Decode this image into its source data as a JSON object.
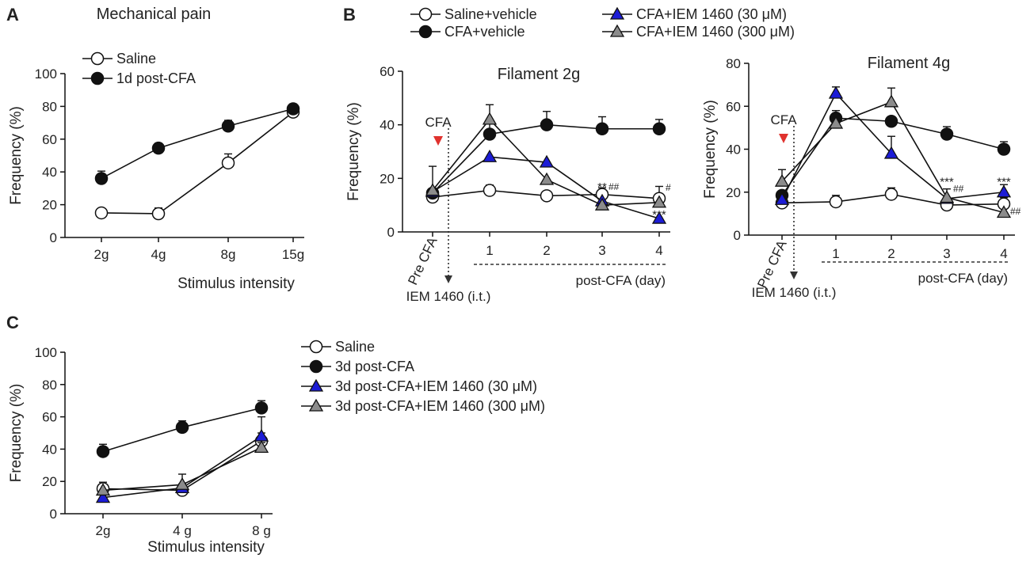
{
  "chart_data": [
    {
      "panel": "A",
      "type": "line",
      "title": "Mechanical pain",
      "xlabel": "Stimulus intensity",
      "ylabel": "Frequency (%)",
      "ylim": [
        0,
        100
      ],
      "yticks": [
        "0",
        "20",
        "40",
        "60",
        "80",
        "100"
      ],
      "categories": [
        "2g",
        "4g",
        "8g",
        "15g"
      ],
      "legend_position": "top-left",
      "series": [
        {
          "name": "Saline",
          "marker": "circle-open",
          "color": "#ffffff",
          "values": [
            15,
            14.5,
            45.5,
            76.5
          ],
          "errors": [
            0,
            3.5,
            5.5,
            3.5
          ]
        },
        {
          "name": "1d post-CFA",
          "marker": "circle-filled",
          "color": "#111111",
          "values": [
            36,
            54.5,
            68,
            78.5
          ],
          "errors": [
            4.5,
            3,
            3.5,
            3
          ]
        }
      ]
    },
    {
      "panel": "B",
      "type": "line",
      "title": "Filament 2g",
      "ylabel": "Frequency (%)",
      "ylim": [
        0,
        60
      ],
      "yticks": [
        "0",
        "20",
        "40",
        "60"
      ],
      "categories": [
        "Pre CFA",
        "1",
        "2",
        "3",
        "4"
      ],
      "x_bracket_label": "post-CFA (day)",
      "cfa_label": "CFA",
      "injection_label": "IEM 1460 (i.t.)",
      "annotations": [
        {
          "category": "3",
          "text": "**",
          "y": 16.5
        },
        {
          "category": "3",
          "text": "##",
          "y": 16.8,
          "small": true
        },
        {
          "category": "4",
          "text": "#",
          "y": 16.5,
          "small": true
        },
        {
          "category": "4",
          "text": "***",
          "y": 6.2
        }
      ],
      "series": [
        {
          "name": "Saline+vehicle",
          "marker": "circle-open",
          "color": "#ffffff",
          "values": [
            13,
            15.5,
            13.5,
            14,
            12.5
          ],
          "errors": [
            0,
            2,
            0,
            2.5,
            4.5
          ]
        },
        {
          "name": "CFA+vehicle",
          "marker": "circle-filled",
          "color": "#111111",
          "values": [
            14.5,
            36.5,
            40,
            38.5,
            38.5
          ],
          "errors": [
            0,
            5,
            5,
            4.5,
            3.5
          ]
        },
        {
          "name": "CFA+IEM 1460 (30 μM)",
          "marker": "triangle",
          "color": "#1c1cd6",
          "values": [
            15,
            28,
            26,
            11.5,
            5
          ],
          "errors": [
            9.5,
            0,
            0,
            0,
            0
          ]
        },
        {
          "name": "CFA+IEM 1460 (300 μM)",
          "marker": "triangle",
          "color": "#8c8c8c",
          "values": [
            15.5,
            42,
            19.5,
            10,
            11
          ],
          "errors": [
            0,
            5.5,
            0,
            0,
            0
          ]
        }
      ]
    },
    {
      "panel": "B-right",
      "type": "line",
      "title": "Filament 4g",
      "ylabel": "Frequency (%)",
      "ylim": [
        0,
        80
      ],
      "yticks": [
        "0",
        "20",
        "40",
        "60",
        "80"
      ],
      "categories": [
        "Pre CFA",
        "1",
        "2",
        "3",
        "4"
      ],
      "x_bracket_label": "post-CFA (day)",
      "cfa_label": "CFA",
      "injection_label": "IEM 1460 (i.t.)",
      "annotations": [
        {
          "category": "3",
          "text": "***",
          "y": 24.5
        },
        {
          "category": "3",
          "text": "##",
          "y": 21.5,
          "small": true
        },
        {
          "category": "4",
          "text": "***",
          "y": 24.5
        },
        {
          "category": "4",
          "text": "##",
          "y": 11,
          "small": true
        }
      ],
      "series": [
        {
          "name": "Saline+vehicle",
          "marker": "circle-open",
          "color": "#ffffff",
          "values": [
            15,
            15.5,
            19,
            14,
            14.5
          ],
          "errors": [
            2,
            3,
            3,
            2.5,
            3
          ]
        },
        {
          "name": "CFA+vehicle",
          "marker": "circle-filled",
          "color": "#111111",
          "values": [
            18.5,
            54.5,
            53,
            47,
            40
          ],
          "errors": [
            0,
            3.5,
            0,
            3.5,
            3.5
          ]
        },
        {
          "name": "CFA+IEM 1460 (30 μM)",
          "marker": "triangle",
          "color": "#1c1cd6",
          "values": [
            16.5,
            66,
            38,
            17,
            20
          ],
          "errors": [
            0,
            3,
            8,
            4.5,
            3.5
          ]
        },
        {
          "name": "CFA+IEM 1460 (300 μM)",
          "marker": "triangle",
          "color": "#8c8c8c",
          "values": [
            25,
            52,
            62,
            17.5,
            10.5
          ],
          "errors": [
            5.5,
            0,
            6.5,
            0,
            0
          ]
        }
      ]
    },
    {
      "panel": "C",
      "type": "line",
      "xlabel": "Stimulus intensity",
      "ylabel": "Frequency (%)",
      "ylim": [
        0,
        100
      ],
      "yticks": [
        "0",
        "20",
        "40",
        "60",
        "80",
        "100"
      ],
      "categories": [
        "2g",
        "4 g",
        "8 g"
      ],
      "legend_position": "right",
      "series": [
        {
          "name": "Saline",
          "marker": "circle-open",
          "color": "#ffffff",
          "values": [
            15.5,
            14.5,
            45
          ],
          "errors": [
            4,
            4,
            5
          ]
        },
        {
          "name": "3d post-CFA",
          "marker": "circle-filled",
          "color": "#111111",
          "values": [
            38.5,
            53.5,
            65.5
          ],
          "errors": [
            4.5,
            4,
            4.5
          ]
        },
        {
          "name": "3d post-CFA+IEM 1460 (30 μM)",
          "marker": "triangle",
          "color": "#1c1cd6",
          "values": [
            10,
            16,
            48
          ],
          "errors": [
            0,
            0,
            12
          ]
        },
        {
          "name": "3d post-CFA+IEM 1460 (300 μM)",
          "marker": "triangle",
          "color": "#8c8c8c",
          "values": [
            14.5,
            18,
            41
          ],
          "errors": [
            0,
            6.5,
            3
          ]
        }
      ]
    }
  ]
}
